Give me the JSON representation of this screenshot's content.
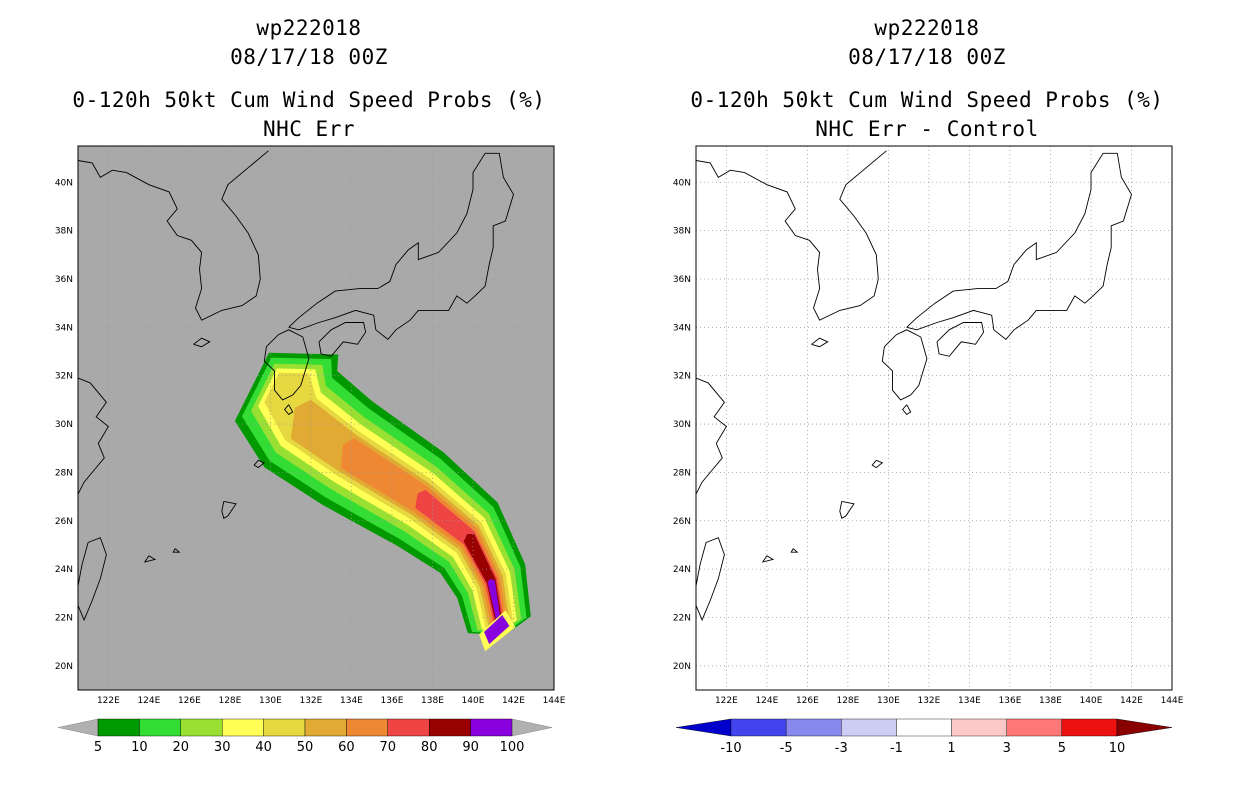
{
  "left_panel": {
    "title_line1": "wp222018",
    "title_line2": "08/17/18 00Z",
    "title_line3": "0-120h 50kt Cum Wind Speed Probs (%)",
    "title_line4": "NHC Err",
    "background_color": "#a9a9a9",
    "colorbar": {
      "labels": [
        "5",
        "10",
        "20",
        "30",
        "40",
        "50",
        "60",
        "70",
        "80",
        "90",
        "100"
      ],
      "colors": [
        "#009900",
        "#33dd33",
        "#99e033",
        "#ffff55",
        "#e6d840",
        "#e0aa33",
        "#ee8833",
        "#ee4444",
        "#990000",
        "#8800dd"
      ],
      "extension_color": "#b0b0b0"
    }
  },
  "right_panel": {
    "title_line1": "wp222018",
    "title_line2": "08/17/18 00Z",
    "title_line3": "0-120h 50kt Cum Wind Speed Probs (%)",
    "title_line4": "NHC Err - Control",
    "background_color": "#ffffff",
    "colorbar": {
      "labels": [
        "-10",
        "-5",
        "-3",
        "-1",
        "1",
        "3",
        "5",
        "10"
      ],
      "colors": [
        "#0000cc",
        "#4444ee",
        "#8888ee",
        "#ccccf5",
        "#ffffff",
        "#ffc8c8",
        "#ff7777",
        "#ee1111",
        "#880000"
      ]
    }
  },
  "map_axes": {
    "x_ticks": [
      "122E",
      "124E",
      "126E",
      "128E",
      "130E",
      "132E",
      "134E",
      "136E",
      "138E",
      "140E",
      "142E",
      "144E"
    ],
    "y_ticks": [
      "20N",
      "22N",
      "24N",
      "26N",
      "28N",
      "30N",
      "32N",
      "34N",
      "36N",
      "38N",
      "40N"
    ],
    "lon_range": [
      120.5,
      144
    ],
    "lat_range": [
      19,
      41.5
    ]
  },
  "probability_field": {
    "track_center": [
      [
        141.3,
        21.7
      ],
      [
        140.9,
        23.5
      ],
      [
        139.8,
        25.3
      ],
      [
        137.4,
        26.9
      ],
      [
        133.8,
        28.8
      ],
      [
        131.5,
        30.2
      ],
      [
        130.8,
        31.5
      ]
    ],
    "contour_levels": [
      5,
      10,
      20,
      30,
      40,
      50,
      60,
      70,
      80,
      90
    ]
  }
}
